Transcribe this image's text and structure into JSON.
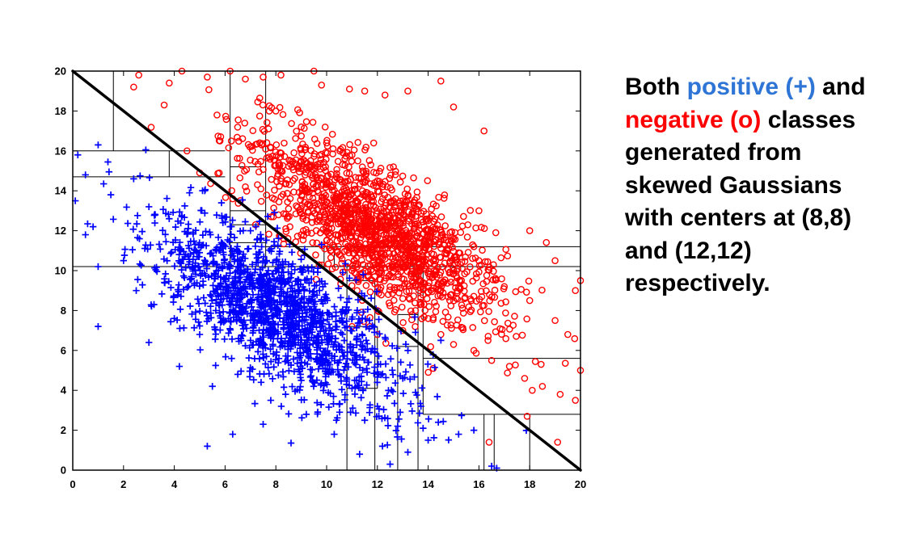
{
  "caption": {
    "line1_lead": "Both ",
    "line1_positive": "positive (+)",
    "line1_trail": " and",
    "line2_negative": "negative (o)",
    "line2_trail": " classes",
    "line3": "generated from",
    "line4": "skewed Gaussians",
    "line5": "with centers at (8,8)",
    "line6": "and (12,12)",
    "line7": "respectively."
  },
  "colors": {
    "positive": "#0000FF",
    "negative": "#FF0000",
    "positive_text": "#2E75D6",
    "negative_text": "#FF0000",
    "boundary": "#000000"
  },
  "chart_data": {
    "type": "scatter",
    "title": "",
    "xlabel": "",
    "ylabel": "",
    "xlim": [
      0,
      20
    ],
    "ylim": [
      0,
      20
    ],
    "xticks": [
      "0",
      "2",
      "4",
      "6",
      "8",
      "10",
      "12",
      "14",
      "16",
      "18",
      "20"
    ],
    "yticks": [
      "0",
      "2",
      "4",
      "6",
      "8",
      "10",
      "12",
      "14",
      "16",
      "18",
      "20"
    ],
    "grid": false,
    "series": [
      {
        "marker": "+",
        "class": "positive",
        "center": [
          8,
          8
        ],
        "color": "#0000FF",
        "approx_count": 1500,
        "points": [
          [
            0.2,
            15.8
          ],
          [
            1.0,
            16.3
          ],
          [
            0.5,
            14.8
          ],
          [
            0.1,
            13.5
          ],
          [
            0.8,
            12.2
          ],
          [
            1.5,
            13.8
          ],
          [
            2.4,
            14.6
          ],
          [
            3.0,
            13.2
          ],
          [
            3.8,
            12.6
          ],
          [
            4.6,
            13.9
          ],
          [
            5.2,
            14.0
          ],
          [
            6.2,
            12.2
          ],
          [
            7.0,
            12.0
          ],
          [
            1.0,
            10.2
          ],
          [
            0.5,
            11.8
          ],
          [
            2.0,
            10.5
          ],
          [
            1.0,
            7.2
          ],
          [
            2.5,
            9.0
          ],
          [
            3.2,
            8.3
          ],
          [
            3.0,
            6.4
          ],
          [
            4.0,
            7.6
          ],
          [
            4.2,
            5.2
          ],
          [
            5.0,
            6.8
          ],
          [
            5.5,
            4.2
          ],
          [
            6.0,
            8.9
          ],
          [
            6.5,
            4.8
          ],
          [
            7.0,
            6.5
          ],
          [
            7.5,
            2.3
          ],
          [
            7.8,
            3.5
          ],
          [
            8.0,
            9.5
          ],
          [
            8.5,
            6.2
          ],
          [
            9.0,
            4.5
          ],
          [
            9.2,
            2.8
          ],
          [
            9.5,
            8.2
          ],
          [
            10.0,
            5.5
          ],
          [
            10.3,
            1.8
          ],
          [
            10.5,
            3.3
          ],
          [
            10.8,
            7.2
          ],
          [
            11.0,
            4.1
          ],
          [
            11.3,
            0.8
          ],
          [
            11.5,
            2.5
          ],
          [
            11.8,
            6.1
          ],
          [
            12.0,
            3.2
          ],
          [
            12.2,
            1.2
          ],
          [
            12.5,
            0.3
          ],
          [
            12.8,
            2.2
          ],
          [
            13.0,
            4.6
          ],
          [
            13.2,
            0.9
          ],
          [
            13.5,
            3.9
          ],
          [
            13.8,
            2.1
          ],
          [
            14.0,
            1.5
          ],
          [
            14.4,
            2.4
          ],
          [
            15.2,
            1.8
          ],
          [
            15.8,
            2.0
          ],
          [
            16.5,
            0.2
          ],
          [
            16.7,
            0.1
          ],
          [
            5.3,
            1.2
          ],
          [
            6.3,
            1.8
          ],
          [
            9.8,
            11.3
          ],
          [
            7.3,
            10.4
          ]
        ]
      },
      {
        "marker": "o",
        "class": "negative",
        "center": [
          12,
          12
        ],
        "color": "#FF0000",
        "approx_count": 1500,
        "points": [
          [
            2.6,
            19.8
          ],
          [
            2.4,
            19.2
          ],
          [
            3.8,
            19.4
          ],
          [
            4.3,
            20.0
          ],
          [
            5.3,
            19.7
          ],
          [
            6.2,
            20.0
          ],
          [
            6.8,
            19.6
          ],
          [
            7.5,
            19.7
          ],
          [
            8.2,
            19.8
          ],
          [
            9.5,
            20.0
          ],
          [
            9.8,
            19.3
          ],
          [
            10.9,
            19.1
          ],
          [
            11.5,
            19.0
          ],
          [
            12.3,
            18.8
          ],
          [
            13.2,
            19.0
          ],
          [
            14.5,
            19.5
          ],
          [
            15.0,
            18.2
          ],
          [
            16.2,
            17.0
          ],
          [
            3.6,
            18.3
          ],
          [
            5.8,
            16.5
          ],
          [
            4.5,
            16.0
          ],
          [
            5.0,
            14.9
          ],
          [
            6.8,
            14.2
          ],
          [
            6.3,
            13.6
          ],
          [
            7.2,
            12.3
          ],
          [
            7.9,
            12.7
          ],
          [
            8.5,
            13.1
          ],
          [
            9.0,
            11.8
          ],
          [
            10.0,
            11.5
          ],
          [
            10.5,
            10.8
          ],
          [
            11.0,
            10.0
          ],
          [
            11.8,
            9.5
          ],
          [
            12.5,
            9.2
          ],
          [
            13.0,
            8.6
          ],
          [
            13.5,
            8.0
          ],
          [
            14.0,
            7.6
          ],
          [
            14.5,
            6.8
          ],
          [
            15.0,
            6.3
          ],
          [
            15.8,
            6.0
          ],
          [
            16.5,
            5.5
          ],
          [
            17.2,
            5.2
          ],
          [
            17.8,
            4.6
          ],
          [
            18.5,
            4.2
          ],
          [
            19.2,
            3.8
          ],
          [
            19.8,
            3.5
          ],
          [
            20.0,
            5.0
          ],
          [
            19.5,
            6.8
          ],
          [
            19.0,
            7.5
          ],
          [
            18.0,
            8.5
          ],
          [
            17.0,
            9.2
          ],
          [
            16.0,
            10.5
          ],
          [
            15.0,
            11.6
          ],
          [
            14.0,
            12.5
          ],
          [
            13.0,
            13.5
          ],
          [
            12.0,
            14.5
          ],
          [
            11.0,
            15.8
          ],
          [
            10.0,
            16.4
          ],
          [
            9.0,
            17.2
          ],
          [
            8.0,
            18.0
          ],
          [
            18.1,
            4.0
          ],
          [
            17.9,
            2.7
          ],
          [
            19.1,
            1.4
          ],
          [
            16.4,
            1.4
          ],
          [
            14.2,
            5.1
          ],
          [
            13.0,
            7.0
          ],
          [
            12.0,
            8.0
          ],
          [
            11.2,
            9.0
          ],
          [
            11.0,
            7.2
          ],
          [
            12.0,
            6.8
          ],
          [
            11.7,
            7.2
          ],
          [
            16.0,
            13.0
          ],
          [
            18.0,
            12.0
          ],
          [
            19.0,
            10.5
          ],
          [
            20.0,
            9.5
          ],
          [
            19.8,
            9.0
          ]
        ]
      }
    ],
    "lines": [
      {
        "name": "diagonal-boundary",
        "x": [
          0,
          20
        ],
        "y": [
          20,
          0
        ]
      },
      {
        "name": "tree-split",
        "x": [
          1.6,
          1.6
        ],
        "y": [
          16.0,
          20.0
        ]
      },
      {
        "name": "tree-split",
        "x": [
          0,
          6.0
        ],
        "y": [
          16.0,
          16.0
        ]
      },
      {
        "name": "tree-split",
        "x": [
          0,
          6.0
        ],
        "y": [
          14.7,
          14.7
        ]
      },
      {
        "name": "tree-split",
        "x": [
          3.8,
          3.8
        ],
        "y": [
          14.7,
          16.0
        ]
      },
      {
        "name": "tree-split",
        "x": [
          6.2,
          6.2
        ],
        "y": [
          10.2,
          20.0
        ]
      },
      {
        "name": "tree-split",
        "x": [
          7.6,
          7.6
        ],
        "y": [
          10.2,
          20.0
        ]
      },
      {
        "name": "tree-split",
        "x": [
          6.2,
          7.6
        ],
        "y": [
          12.3,
          12.3
        ]
      },
      {
        "name": "tree-split",
        "x": [
          6.2,
          7.6
        ],
        "y": [
          13.0,
          13.0
        ]
      },
      {
        "name": "tree-split",
        "x": [
          6.2,
          7.6
        ],
        "y": [
          15.2,
          15.2
        ]
      },
      {
        "name": "tree-split",
        "x": [
          6.2,
          7.6
        ],
        "y": [
          11.4,
          11.4
        ]
      },
      {
        "name": "tree-split",
        "x": [
          7.6,
          20.0
        ],
        "y": [
          11.2,
          11.2
        ]
      },
      {
        "name": "tree-split",
        "x": [
          0,
          20.0
        ],
        "y": [
          10.2,
          10.2
        ]
      },
      {
        "name": "tree-split",
        "x": [
          9.9,
          9.9
        ],
        "y": [
          10.2,
          11.2
        ]
      },
      {
        "name": "tree-split",
        "x": [
          10.3,
          10.3
        ],
        "y": [
          10.2,
          11.2
        ]
      },
      {
        "name": "tree-split",
        "x": [
          13.3,
          13.3
        ],
        "y": [
          10.2,
          11.2
        ]
      },
      {
        "name": "tree-split",
        "x": [
          10.8,
          10.8
        ],
        "y": [
          0,
          10.2
        ]
      },
      {
        "name": "tree-split",
        "x": [
          11.9,
          11.9
        ],
        "y": [
          0,
          9.5
        ]
      },
      {
        "name": "tree-split",
        "x": [
          10.8,
          11.9
        ],
        "y": [
          9.5,
          9.5
        ]
      },
      {
        "name": "tree-split",
        "x": [
          10.8,
          12.0
        ],
        "y": [
          7.2,
          7.2
        ]
      },
      {
        "name": "tree-split",
        "x": [
          12.0,
          12.0
        ],
        "y": [
          4.1,
          7.2
        ]
      },
      {
        "name": "tree-split",
        "x": [
          10.8,
          12.0
        ],
        "y": [
          4.1,
          4.1
        ]
      },
      {
        "name": "tree-split",
        "x": [
          12.8,
          13.6
        ],
        "y": [
          7.8,
          7.8
        ]
      },
      {
        "name": "tree-split",
        "x": [
          12.8,
          12.8
        ],
        "y": [
          0,
          7.8
        ]
      },
      {
        "name": "tree-split",
        "x": [
          12.8,
          13.6
        ],
        "y": [
          6.2,
          6.2
        ]
      },
      {
        "name": "tree-split",
        "x": [
          13.6,
          13.6
        ],
        "y": [
          0,
          10.2
        ]
      },
      {
        "name": "tree-split",
        "x": [
          13.8,
          13.8
        ],
        "y": [
          2.8,
          10.2
        ]
      },
      {
        "name": "tree-split",
        "x": [
          13.8,
          20.0
        ],
        "y": [
          5.6,
          5.6
        ]
      },
      {
        "name": "tree-split",
        "x": [
          13.8,
          20.0
        ],
        "y": [
          2.8,
          2.8
        ]
      },
      {
        "name": "tree-split",
        "x": [
          16.2,
          16.2
        ],
        "y": [
          0,
          2.8
        ]
      },
      {
        "name": "tree-split",
        "x": [
          16.6,
          16.6
        ],
        "y": [
          0,
          2.8
        ]
      },
      {
        "name": "tree-split",
        "x": [
          18.0,
          18.0
        ],
        "y": [
          0,
          2.8
        ]
      }
    ]
  }
}
